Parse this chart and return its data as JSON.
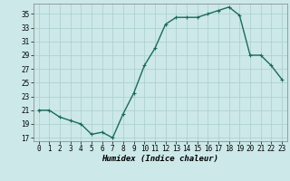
{
  "x": [
    0,
    1,
    2,
    3,
    4,
    5,
    6,
    7,
    8,
    9,
    10,
    11,
    12,
    13,
    14,
    15,
    16,
    17,
    18,
    19,
    20,
    21,
    22,
    23
  ],
  "y": [
    21.0,
    21.0,
    20.0,
    19.5,
    19.0,
    17.5,
    17.8,
    17.0,
    20.5,
    23.5,
    27.5,
    30.0,
    33.5,
    34.5,
    34.5,
    34.5,
    35.0,
    35.5,
    36.0,
    34.8,
    29.0,
    29.0,
    27.5,
    25.5
  ],
  "xlabel": "Humidex (Indice chaleur)",
  "line_color": "#1a6b5a",
  "marker": "+",
  "marker_size": 3,
  "bg_color": "#cce8e8",
  "grid_color": "#aacece",
  "xlim": [
    -0.5,
    23.5
  ],
  "ylim": [
    16.5,
    36.5
  ],
  "yticks": [
    17,
    19,
    21,
    23,
    25,
    27,
    29,
    31,
    33,
    35
  ],
  "xticks": [
    0,
    1,
    2,
    3,
    4,
    5,
    6,
    7,
    8,
    9,
    10,
    11,
    12,
    13,
    14,
    15,
    16,
    17,
    18,
    19,
    20,
    21,
    22,
    23
  ],
  "xtick_labels": [
    "0",
    "1",
    "2",
    "3",
    "4",
    "5",
    "6",
    "7",
    "8",
    "9",
    "10",
    "11",
    "12",
    "13",
    "14",
    "15",
    "16",
    "17",
    "18",
    "19",
    "20",
    "21",
    "22",
    "23"
  ],
  "linewidth": 1.0,
  "tick_fontsize": 5.5,
  "xlabel_fontsize": 6.5
}
